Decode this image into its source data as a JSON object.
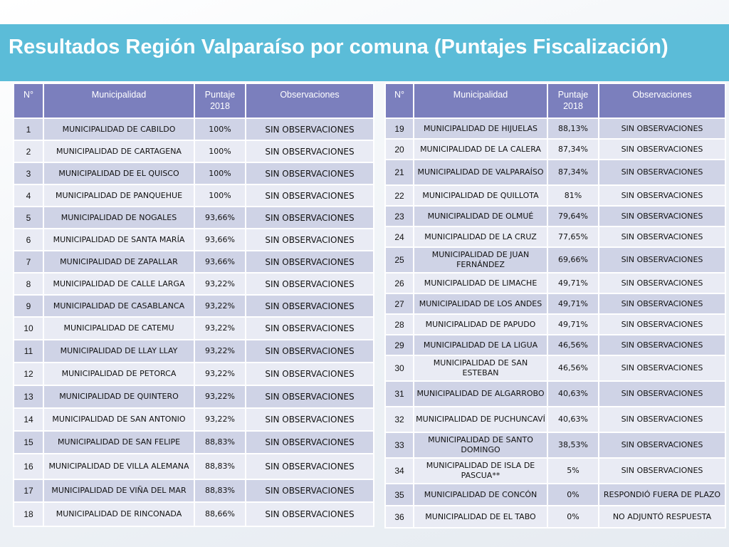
{
  "title": "Resultados Región Valparaíso por comuna (Puntajes Fiscalización)",
  "headers": {
    "num": "N°",
    "municipalidad": "Municipalidad",
    "puntaje_line1": "Puntaje",
    "puntaje_line2": "2018",
    "observaciones": "Observaciones"
  },
  "left_rows": [
    {
      "n": "1",
      "name": "MUNICIPALIDAD DE CABILDO",
      "score": "100%",
      "obs": "SIN OBSERVACIONES"
    },
    {
      "n": "2",
      "name": "MUNICIPALIDAD DE CARTAGENA",
      "score": "100%",
      "obs": "SIN OBSERVACIONES"
    },
    {
      "n": "3",
      "name": "MUNICIPALIDAD DE EL QUISCO",
      "score": "100%",
      "obs": "SIN OBSERVACIONES"
    },
    {
      "n": "4",
      "name": "MUNICIPALIDAD DE PANQUEHUE",
      "score": "100%",
      "obs": "SIN OBSERVACIONES"
    },
    {
      "n": "5",
      "name": "MUNICIPALIDAD DE NOGALES",
      "score": "93,66%",
      "obs": "SIN OBSERVACIONES"
    },
    {
      "n": "6",
      "name": "MUNICIPALIDAD DE SANTA MARÍA",
      "score": "93,66%",
      "obs": "SIN OBSERVACIONES"
    },
    {
      "n": "7",
      "name": "MUNICIPALIDAD DE ZAPALLAR",
      "score": "93,66%",
      "obs": "SIN OBSERVACIONES"
    },
    {
      "n": "8",
      "name": "MUNICIPALIDAD DE CALLE LARGA",
      "score": "93,22%",
      "obs": "SIN OBSERVACIONES"
    },
    {
      "n": "9",
      "name": "MUNICIPALIDAD DE CASABLANCA",
      "score": "93,22%",
      "obs": "SIN OBSERVACIONES"
    },
    {
      "n": "10",
      "name": "MUNICIPALIDAD DE CATEMU",
      "score": "93,22%",
      "obs": "SIN OBSERVACIONES"
    },
    {
      "n": "11",
      "name": "MUNICIPALIDAD DE LLAY LLAY",
      "score": "93,22%",
      "obs": "SIN OBSERVACIONES"
    },
    {
      "n": "12",
      "name": "MUNICIPALIDAD DE PETORCA",
      "score": "93,22%",
      "obs": "SIN OBSERVACIONES"
    },
    {
      "n": "13",
      "name": "MUNICIPALIDAD DE QUINTERO",
      "score": "93,22%",
      "obs": "SIN OBSERVACIONES"
    },
    {
      "n": "14",
      "name": "MUNICIPALIDAD DE SAN ANTONIO",
      "score": "93,22%",
      "obs": "SIN OBSERVACIONES"
    },
    {
      "n": "15",
      "name": "MUNICIPALIDAD DE SAN FELIPE",
      "score": "88,83%",
      "obs": "SIN OBSERVACIONES"
    },
    {
      "n": "16",
      "name": "MUNICIPALIDAD DE VILLA ALEMANA",
      "score": "88,83%",
      "obs": "SIN OBSERVACIONES"
    },
    {
      "n": "17",
      "name": "MUNICIPALIDAD DE VIÑA DEL MAR",
      "score": "88,83%",
      "obs": "SIN OBSERVACIONES"
    },
    {
      "n": "18",
      "name": "MUNICIPALIDAD DE RINCONADA",
      "score": "88,66%",
      "obs": "SIN OBSERVACIONES"
    }
  ],
  "right_rows": [
    {
      "n": "19",
      "name": "MUNICIPALIDAD DE HIJUELAS",
      "score": "88,13%",
      "obs": "SIN OBSERVACIONES"
    },
    {
      "n": "20",
      "name": "MUNICIPALIDAD DE LA CALERA",
      "score": "87,34%",
      "obs": "SIN OBSERVACIONES"
    },
    {
      "n": "21",
      "name": "MUNICIPALIDAD DE VALPARAÍSO",
      "score": "87,34%",
      "obs": "SIN OBSERVACIONES"
    },
    {
      "n": "22",
      "name": "MUNICIPALIDAD DE QUILLOTA",
      "score": "81%",
      "obs": "SIN OBSERVACIONES"
    },
    {
      "n": "23",
      "name": "MUNICIPALIDAD DE OLMUÉ",
      "score": "79,64%",
      "obs": "SIN OBSERVACIONES"
    },
    {
      "n": "24",
      "name": "MUNICIPALIDAD DE LA CRUZ",
      "score": "77,65%",
      "obs": "SIN OBSERVACIONES"
    },
    {
      "n": "25",
      "name": "MUNICIPALIDAD DE JUAN FERNÁNDEZ",
      "score": "69,66%",
      "obs": "SIN OBSERVACIONES"
    },
    {
      "n": "26",
      "name": "MUNICIPALIDAD DE LIMACHE",
      "score": "49,71%",
      "obs": "SIN OBSERVACIONES"
    },
    {
      "n": "27",
      "name": "MUNICIPALIDAD DE LOS ANDES",
      "score": "49,71%",
      "obs": "SIN OBSERVACIONES"
    },
    {
      "n": "28",
      "name": "MUNICIPALIDAD DE PAPUDO",
      "score": "49,71%",
      "obs": "SIN OBSERVACIONES"
    },
    {
      "n": "29",
      "name": "MUNICIPALIDAD DE LA LIGUA",
      "score": "46,56%",
      "obs": "SIN OBSERVACIONES"
    },
    {
      "n": "30",
      "name": "MUNICIPALIDAD DE SAN ESTEBAN",
      "score": "46,56%",
      "obs": "SIN OBSERVACIONES"
    },
    {
      "n": "31",
      "name": "MUNICIPALIDAD DE ALGARROBO",
      "score": "40,63%",
      "obs": "SIN OBSERVACIONES"
    },
    {
      "n": "32",
      "name": "MUNICIPALIDAD DE PUCHUNCAVÍ",
      "score": "40,63%",
      "obs": "SIN OBSERVACIONES"
    },
    {
      "n": "33",
      "name": "MUNICIPALIDAD DE SANTO DOMINGO",
      "score": "38,53%",
      "obs": "SIN OBSERVACIONES"
    },
    {
      "n": "34",
      "name": "MUNICIPALIDAD DE ISLA DE PASCUA**",
      "score": "5%",
      "obs": "SIN OBSERVACIONES"
    },
    {
      "n": "35",
      "name": "MUNICIPALIDAD DE CONCÓN",
      "score": "0%",
      "obs": "RESPONDIÓ FUERA DE PLAZO"
    },
    {
      "n": "36",
      "name": "MUNICIPALIDAD DE EL TABO",
      "score": "0%",
      "obs": "NO ADJUNTÓ RESPUESTA"
    }
  ]
}
